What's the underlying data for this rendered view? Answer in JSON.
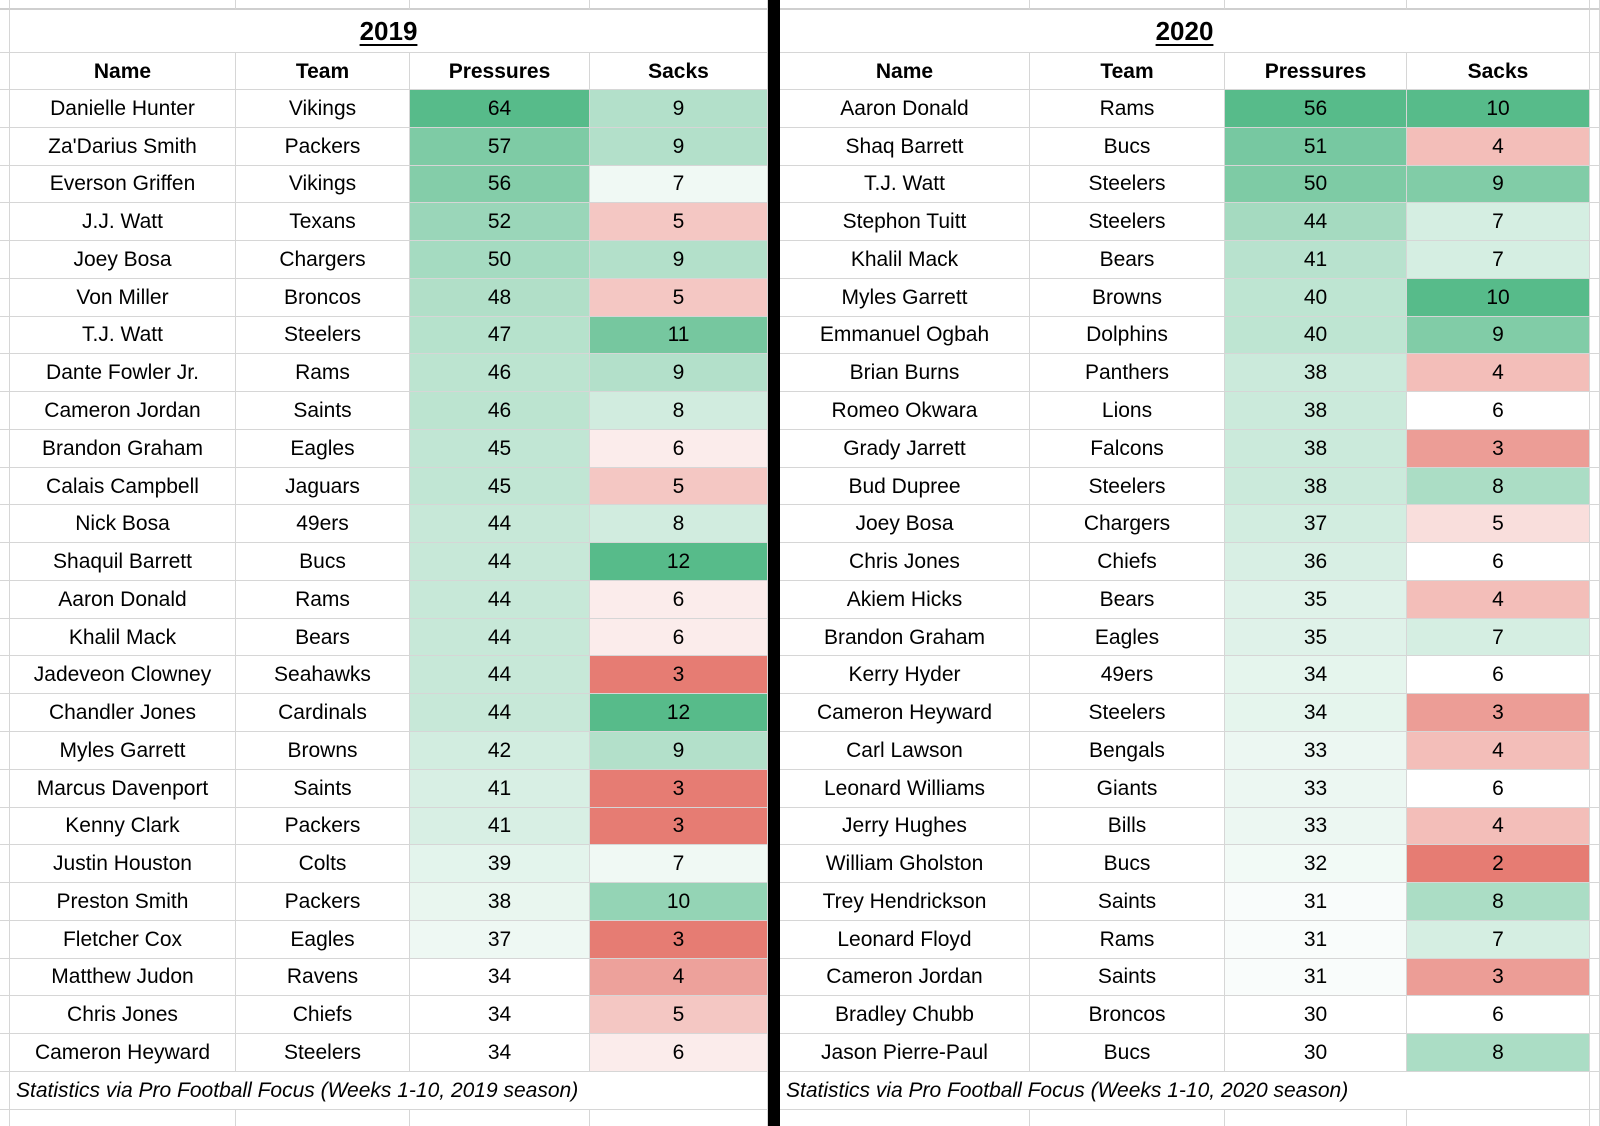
{
  "colors": {
    "scale_green": "#57bb8a",
    "scale_red": "#e67c73",
    "scale_neutral": "#ffffff",
    "divider": "#000000",
    "gridline": "#d6d6d6"
  },
  "tables": [
    {
      "title": "2019",
      "columns": [
        "Name",
        "Team",
        "Pressures",
        "Sacks"
      ],
      "footer": "Statistics via Pro Football Focus (Weeks 1-10, 2019 season)",
      "color_scales": {
        "pressures": {
          "min": 34,
          "max": 64
        },
        "sacks": {
          "min": 3,
          "mid": 6.5,
          "max": 12
        }
      },
      "players": [
        {
          "name": "Danielle Hunter",
          "team": "Vikings",
          "pressures": 64,
          "sacks": 9
        },
        {
          "name": "Za'Darius Smith",
          "team": "Packers",
          "pressures": 57,
          "sacks": 9
        },
        {
          "name": "Everson Griffen",
          "team": "Vikings",
          "pressures": 56,
          "sacks": 7
        },
        {
          "name": "J.J. Watt",
          "team": "Texans",
          "pressures": 52,
          "sacks": 5
        },
        {
          "name": "Joey Bosa",
          "team": "Chargers",
          "pressures": 50,
          "sacks": 9
        },
        {
          "name": "Von Miller",
          "team": "Broncos",
          "pressures": 48,
          "sacks": 5
        },
        {
          "name": "T.J. Watt",
          "team": "Steelers",
          "pressures": 47,
          "sacks": 11
        },
        {
          "name": "Dante Fowler Jr.",
          "team": "Rams",
          "pressures": 46,
          "sacks": 9
        },
        {
          "name": "Cameron Jordan",
          "team": "Saints",
          "pressures": 46,
          "sacks": 8
        },
        {
          "name": "Brandon Graham",
          "team": "Eagles",
          "pressures": 45,
          "sacks": 6
        },
        {
          "name": "Calais Campbell",
          "team": "Jaguars",
          "pressures": 45,
          "sacks": 5
        },
        {
          "name": "Nick Bosa",
          "team": "49ers",
          "pressures": 44,
          "sacks": 8
        },
        {
          "name": "Shaquil Barrett",
          "team": "Bucs",
          "pressures": 44,
          "sacks": 12
        },
        {
          "name": "Aaron Donald",
          "team": "Rams",
          "pressures": 44,
          "sacks": 6
        },
        {
          "name": "Khalil Mack",
          "team": "Bears",
          "pressures": 44,
          "sacks": 6
        },
        {
          "name": "Jadeveon Clowney",
          "team": "Seahawks",
          "pressures": 44,
          "sacks": 3
        },
        {
          "name": "Chandler Jones",
          "team": "Cardinals",
          "pressures": 44,
          "sacks": 12
        },
        {
          "name": "Myles Garrett",
          "team": "Browns",
          "pressures": 42,
          "sacks": 9
        },
        {
          "name": "Marcus Davenport",
          "team": "Saints",
          "pressures": 41,
          "sacks": 3
        },
        {
          "name": "Kenny Clark",
          "team": "Packers",
          "pressures": 41,
          "sacks": 3
        },
        {
          "name": "Justin Houston",
          "team": "Colts",
          "pressures": 39,
          "sacks": 7
        },
        {
          "name": "Preston Smith",
          "team": "Packers",
          "pressures": 38,
          "sacks": 10
        },
        {
          "name": "Fletcher Cox",
          "team": "Eagles",
          "pressures": 37,
          "sacks": 3
        },
        {
          "name": "Matthew Judon",
          "team": "Ravens",
          "pressures": 34,
          "sacks": 4
        },
        {
          "name": "Chris Jones",
          "team": "Chiefs",
          "pressures": 34,
          "sacks": 5
        },
        {
          "name": "Cameron Heyward",
          "team": "Steelers",
          "pressures": 34,
          "sacks": 6
        }
      ]
    },
    {
      "title": "2020",
      "columns": [
        "Name",
        "Team",
        "Pressures",
        "Sacks"
      ],
      "footer": "Statistics via Pro Football Focus (Weeks 1-10, 2020 season)",
      "color_scales": {
        "pressures": {
          "min": 30,
          "max": 56
        },
        "sacks": {
          "min": 2,
          "mid": 6,
          "max": 10
        }
      },
      "players": [
        {
          "name": "Aaron Donald",
          "team": "Rams",
          "pressures": 56,
          "sacks": 10
        },
        {
          "name": "Shaq Barrett",
          "team": "Bucs",
          "pressures": 51,
          "sacks": 4
        },
        {
          "name": "T.J. Watt",
          "team": "Steelers",
          "pressures": 50,
          "sacks": 9
        },
        {
          "name": "Stephon Tuitt",
          "team": "Steelers",
          "pressures": 44,
          "sacks": 7
        },
        {
          "name": "Khalil Mack",
          "team": "Bears",
          "pressures": 41,
          "sacks": 7
        },
        {
          "name": "Myles Garrett",
          "team": "Browns",
          "pressures": 40,
          "sacks": 10
        },
        {
          "name": "Emmanuel Ogbah",
          "team": "Dolphins",
          "pressures": 40,
          "sacks": 9
        },
        {
          "name": "Brian Burns",
          "team": "Panthers",
          "pressures": 38,
          "sacks": 4
        },
        {
          "name": "Romeo Okwara",
          "team": "Lions",
          "pressures": 38,
          "sacks": 6
        },
        {
          "name": "Grady Jarrett",
          "team": "Falcons",
          "pressures": 38,
          "sacks": 3
        },
        {
          "name": "Bud Dupree",
          "team": "Steelers",
          "pressures": 38,
          "sacks": 8
        },
        {
          "name": "Joey Bosa",
          "team": "Chargers",
          "pressures": 37,
          "sacks": 5
        },
        {
          "name": "Chris Jones",
          "team": "Chiefs",
          "pressures": 36,
          "sacks": 6
        },
        {
          "name": "Akiem Hicks",
          "team": "Bears",
          "pressures": 35,
          "sacks": 4
        },
        {
          "name": "Brandon Graham",
          "team": "Eagles",
          "pressures": 35,
          "sacks": 7
        },
        {
          "name": "Kerry Hyder",
          "team": "49ers",
          "pressures": 34,
          "sacks": 6
        },
        {
          "name": "Cameron Heyward",
          "team": "Steelers",
          "pressures": 34,
          "sacks": 3
        },
        {
          "name": "Carl Lawson",
          "team": "Bengals",
          "pressures": 33,
          "sacks": 4
        },
        {
          "name": "Leonard Williams",
          "team": "Giants",
          "pressures": 33,
          "sacks": 6
        },
        {
          "name": "Jerry Hughes",
          "team": "Bills",
          "pressures": 33,
          "sacks": 4
        },
        {
          "name": "William Gholston",
          "team": "Bucs",
          "pressures": 32,
          "sacks": 2
        },
        {
          "name": "Trey Hendrickson",
          "team": "Saints",
          "pressures": 31,
          "sacks": 8
        },
        {
          "name": "Leonard Floyd",
          "team": "Rams",
          "pressures": 31,
          "sacks": 7
        },
        {
          "name": "Cameron Jordan",
          "team": "Saints",
          "pressures": 31,
          "sacks": 3
        },
        {
          "name": "Bradley Chubb",
          "team": "Broncos",
          "pressures": 30,
          "sacks": 6
        },
        {
          "name": "Jason Pierre-Paul",
          "team": "Bucs",
          "pressures": 30,
          "sacks": 8
        }
      ]
    }
  ]
}
